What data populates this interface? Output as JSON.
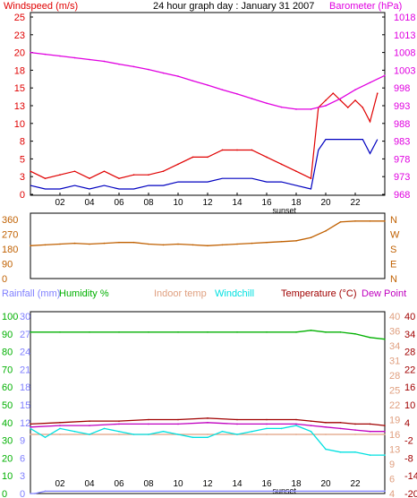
{
  "header": {
    "windspeed_label": "Windspeed (m/s)",
    "title": "24 hour graph day : January 31 2007",
    "barometer_label": "Barometer (hPa)"
  },
  "colors": {
    "windspeed": "#e00000",
    "windspeed_avg": "#0000c0",
    "barometer": "#e000e0",
    "direction": "#c06000",
    "rainfall": "#8080ff",
    "humidity": "#00b000",
    "indoor_temp": "#e0a080",
    "windchill": "#00e0e0",
    "temperature": "#a00000",
    "dew_point": "#c000c0"
  },
  "chart_data": [
    {
      "type": "line",
      "panel": "wind-barometer",
      "title": "24 hour graph day : January 31 2007",
      "x_ticks": [
        "02",
        "04",
        "06",
        "08",
        "10",
        "12",
        "14",
        "16",
        "18",
        "20",
        "22"
      ],
      "x_annotation": "sunset",
      "xlim": [
        0,
        24
      ],
      "left_axis": {
        "label": "Windspeed (m/s)",
        "ticks": [
          "0",
          "3",
          "5",
          "8",
          "10",
          "13",
          "15",
          "18",
          "20",
          "23",
          "25"
        ],
        "range": [
          0,
          25
        ]
      },
      "right_axis": {
        "label": "Barometer (hPa)",
        "ticks": [
          "968",
          "973",
          "978",
          "983",
          "988",
          "993",
          "998",
          "1003",
          "1008",
          "1013",
          "1018"
        ],
        "range": [
          968,
          1018
        ]
      },
      "series": [
        {
          "name": "Windspeed (m/s)",
          "axis": "left",
          "style": "gust",
          "x": [
            0,
            1,
            2,
            3,
            4,
            5,
            6,
            7,
            8,
            9,
            10,
            11,
            12,
            13,
            14,
            15,
            16,
            17,
            18,
            19,
            19.5,
            20,
            20.5,
            21,
            21.5,
            22,
            22.5,
            23,
            23.5
          ],
          "y": [
            3,
            2,
            2.5,
            3,
            2,
            3,
            2,
            2.5,
            2.5,
            3,
            4,
            5,
            5,
            6,
            6,
            6,
            5,
            4,
            3,
            2,
            12,
            13,
            14,
            13,
            12,
            13,
            12,
            10,
            14
          ]
        },
        {
          "name": "",
          "axis": "left",
          "style": "average",
          "x": [
            0,
            1,
            2,
            3,
            4,
            5,
            6,
            7,
            8,
            9,
            10,
            11,
            12,
            13,
            14,
            15,
            16,
            17,
            18,
            19,
            19.5,
            20,
            20.5,
            21,
            21.5,
            22,
            22.5,
            23,
            23.5
          ],
          "y": [
            1,
            0.5,
            0.5,
            1,
            0.5,
            1,
            0.5,
            0.5,
            1,
            1,
            1.5,
            1.5,
            1.5,
            2,
            2,
            2,
            1.5,
            1.5,
            1,
            0.5,
            6,
            7.5,
            7.5,
            7.5,
            7.5,
            7.5,
            7.5,
            5.5,
            7.5
          ]
        },
        {
          "name": "Barometer (hPa)",
          "axis": "right",
          "x": [
            0,
            1,
            2,
            3,
            4,
            5,
            6,
            7,
            8,
            9,
            10,
            11,
            12,
            13,
            14,
            15,
            16,
            17,
            18,
            19,
            20,
            21,
            22,
            23,
            24
          ],
          "y": [
            1007.5,
            1007,
            1006.5,
            1006,
            1005.5,
            1005,
            1004.2,
            1003.5,
            1002.7,
            1001.7,
            1000.8,
            999.5,
            998.3,
            997,
            995.8,
            994.5,
            993.2,
            992.1,
            991.5,
            991.5,
            992.5,
            994.5,
            997,
            999,
            1001
          ]
        }
      ]
    },
    {
      "type": "line",
      "panel": "wind-direction",
      "left_axis": {
        "ticks": [
          "360",
          "270",
          "180",
          "90",
          "0"
        ],
        "range": [
          0,
          360
        ]
      },
      "right_axis": {
        "ticks": [
          "N",
          "W",
          "S",
          "E",
          "N"
        ]
      },
      "xlim": [
        0,
        24
      ],
      "series": [
        {
          "name": "",
          "x": [
            0,
            1,
            2,
            3,
            4,
            5,
            6,
            7,
            8,
            9,
            10,
            11,
            12,
            13,
            14,
            15,
            16,
            17,
            18,
            19,
            20,
            21,
            22,
            23,
            24
          ],
          "y": [
            200,
            205,
            210,
            215,
            210,
            215,
            220,
            220,
            210,
            205,
            210,
            205,
            200,
            205,
            210,
            215,
            220,
            225,
            230,
            250,
            290,
            345,
            350,
            350,
            350
          ]
        }
      ]
    },
    {
      "type": "line",
      "panel": "temperature-humidity",
      "legend": [
        "Rainfall (mm)",
        "Humidity %",
        "Indoor temp",
        "Windchill",
        "Temperature (°C)",
        "Dew Point"
      ],
      "x_ticks": [
        "02",
        "04",
        "06",
        "08",
        "10",
        "12",
        "14",
        "16",
        "18",
        "20",
        "22"
      ],
      "x_annotation": "sunset",
      "xlim": [
        0,
        24
      ],
      "left_axis_humidity": {
        "ticks": [
          "100",
          "90",
          "80",
          "70",
          "60",
          "50",
          "40",
          "30",
          "20",
          "10",
          "0"
        ],
        "range": [
          0,
          100
        ]
      },
      "left_axis_rainfall": {
        "ticks": [
          "30",
          "27",
          "24",
          "21",
          "18",
          "15",
          "12",
          "9",
          "6",
          "3",
          "0"
        ],
        "range": [
          0,
          30
        ]
      },
      "right_axis_inner": {
        "ticks": [
          "40",
          "36",
          "34",
          "31",
          "28",
          "25",
          "22",
          "19",
          "16",
          "13",
          "9",
          "6",
          "4"
        ]
      },
      "right_axis_temperature": {
        "ticks": [
          "40",
          "34",
          "28",
          "22",
          "16",
          "10",
          "4",
          "-2",
          "-8",
          "-14",
          "-20"
        ],
        "range": [
          -20,
          40
        ]
      },
      "series": [
        {
          "name": "Humidity %",
          "axis": "humidity",
          "x": [
            0,
            2,
            4,
            6,
            8,
            10,
            12,
            14,
            16,
            18,
            19,
            20,
            21,
            22,
            23,
            24
          ],
          "y": [
            91,
            91,
            91,
            91,
            91,
            91,
            91,
            91,
            91,
            91,
            92,
            91,
            91,
            90,
            88,
            87
          ]
        },
        {
          "name": "Rainfall (mm)",
          "axis": "rainfall",
          "x": [
            0,
            0.3,
            1,
            24
          ],
          "y": [
            0,
            0,
            0.4,
            0.4
          ]
        },
        {
          "name": "Temperature (°C)",
          "axis": "temperature",
          "x": [
            0,
            2,
            4,
            6,
            8,
            10,
            12,
            14,
            16,
            18,
            19,
            20,
            21,
            22,
            23,
            24
          ],
          "y": [
            3.5,
            4,
            4.5,
            4.5,
            5,
            5,
            5.5,
            5,
            5,
            5,
            4.5,
            4,
            4,
            3.5,
            3.5,
            3
          ]
        },
        {
          "name": "Dew Point",
          "axis": "temperature",
          "x": [
            0,
            2,
            4,
            6,
            8,
            10,
            12,
            14,
            16,
            18,
            19,
            20,
            21,
            22,
            23,
            24
          ],
          "y": [
            2.5,
            3,
            3,
            3.5,
            3.5,
            3.5,
            4,
            3.5,
            3.5,
            3.5,
            3,
            2.5,
            2,
            1.5,
            1,
            1
          ]
        },
        {
          "name": "Indoor temp",
          "axis": "temperature",
          "x": [
            0,
            2,
            4,
            6,
            8,
            10,
            12,
            14,
            16,
            18,
            20,
            22,
            24
          ],
          "y": [
            0,
            0,
            0,
            0,
            0,
            0,
            0,
            0,
            0,
            0,
            0,
            0,
            0
          ]
        },
        {
          "name": "Windchill",
          "axis": "temperature",
          "x": [
            0,
            1,
            2,
            3,
            4,
            5,
            6,
            7,
            8,
            9,
            10,
            11,
            12,
            13,
            14,
            15,
            16,
            17,
            18,
            19,
            20,
            21,
            22,
            23,
            24
          ],
          "y": [
            2,
            -1,
            2,
            1,
            0,
            2,
            1,
            0,
            0,
            1,
            0,
            -1,
            -1,
            1,
            0,
            1,
            2,
            2,
            3,
            1,
            -5,
            -6,
            -6,
            -7,
            -7
          ]
        }
      ]
    }
  ]
}
